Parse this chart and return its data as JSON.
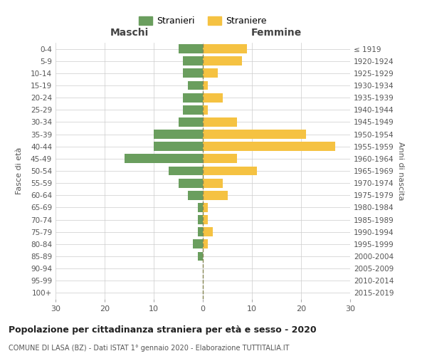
{
  "age_groups": [
    "0-4",
    "5-9",
    "10-14",
    "15-19",
    "20-24",
    "25-29",
    "30-34",
    "35-39",
    "40-44",
    "45-49",
    "50-54",
    "55-59",
    "60-64",
    "65-69",
    "70-74",
    "75-79",
    "80-84",
    "85-89",
    "90-94",
    "95-99",
    "100+"
  ],
  "birth_years": [
    "2015-2019",
    "2010-2014",
    "2005-2009",
    "2000-2004",
    "1995-1999",
    "1990-1994",
    "1985-1989",
    "1980-1984",
    "1975-1979",
    "1970-1974",
    "1965-1969",
    "1960-1964",
    "1955-1959",
    "1950-1954",
    "1945-1949",
    "1940-1944",
    "1935-1939",
    "1930-1934",
    "1925-1929",
    "1920-1924",
    "≤ 1919"
  ],
  "maschi": [
    5,
    4,
    4,
    3,
    4,
    4,
    5,
    10,
    10,
    16,
    7,
    5,
    3,
    1,
    1,
    1,
    2,
    1,
    0,
    0,
    0
  ],
  "femmine": [
    9,
    8,
    3,
    1,
    4,
    1,
    7,
    21,
    27,
    7,
    11,
    4,
    5,
    1,
    1,
    2,
    1,
    0,
    0,
    0,
    0
  ],
  "maschi_color": "#6a9e5e",
  "femmine_color": "#f5c242",
  "title": "Popolazione per cittadinanza straniera per età e sesso - 2020",
  "subtitle": "COMUNE DI LASA (BZ) - Dati ISTAT 1° gennaio 2020 - Elaborazione TUTTITALIA.IT",
  "ylabel_left": "Fasce di età",
  "ylabel_right": "Anni di nascita",
  "xlabel_maschi": "Maschi",
  "xlabel_femmine": "Femmine",
  "legend_stranieri": "Stranieri",
  "legend_straniere": "Straniere",
  "xlim": 30,
  "background_color": "#ffffff",
  "grid_color": "#cccccc"
}
